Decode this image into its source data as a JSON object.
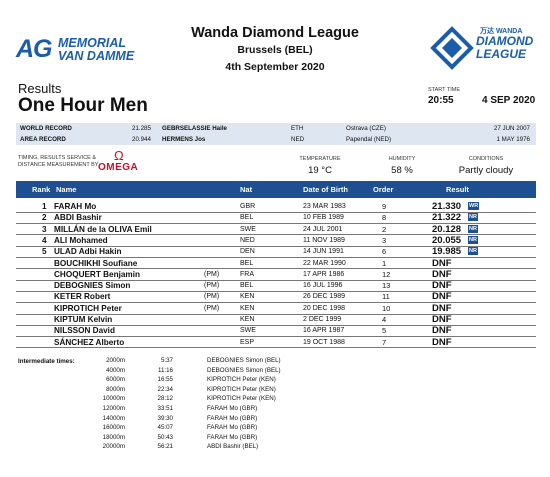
{
  "header": {
    "left_logo": {
      "mark": "AG",
      "line1": "MEMORIAL",
      "line2": "VAN DAMME"
    },
    "event_title": "Wanda Diamond League",
    "event_location": "Brussels (BEL)",
    "event_date": "4th September 2020",
    "right_logo": {
      "top": "万达 WANDA",
      "line1": "DIAMOND",
      "line2": "LEAGUE"
    }
  },
  "results_label": "Results",
  "event_name": "One Hour Men",
  "start": {
    "label": "START TIME",
    "time": "20:55",
    "date": "4 SEP 2020"
  },
  "records": [
    {
      "label": "WORLD RECORD",
      "mark": "21.285",
      "athlete": "GEBRSELASSIE Haile",
      "nat": "ETH",
      "venue": "Ostrava (CZE)",
      "date": "27 JUN 2007"
    },
    {
      "label": "AREA RECORD",
      "mark": "20.944",
      "athlete": "HERMENS Jos",
      "nat": "NED",
      "venue": "Papendal (NED)",
      "date": "1 MAY 1976"
    }
  ],
  "timing": {
    "line1": "TIMING, RESULTS SERVICE &",
    "line2": "DISTANCE MEASUREMENT BY",
    "brand": "OMEGA",
    "brand_symbol": "Ω"
  },
  "conditions": [
    {
      "label": "TEMPERATURE",
      "value": "19 °C"
    },
    {
      "label": "HUMIDITY",
      "value": "58 %"
    },
    {
      "label": "CONDITIONS",
      "value": "Partly cloudy"
    }
  ],
  "table": {
    "headers": {
      "rank": "Rank",
      "name": "Name",
      "nat": "Nat",
      "dob": "Date of Birth",
      "order": "Order",
      "result": "Result"
    },
    "rows": [
      {
        "rank": "1",
        "name": "FARAH Mo",
        "pm": "",
        "nat": "GBR",
        "dob": "23 MAR 1983",
        "order": "9",
        "result": "21.330",
        "tag": "WR"
      },
      {
        "rank": "2",
        "name": "ABDI Bashir",
        "pm": "",
        "nat": "BEL",
        "dob": "10 FEB 1989",
        "order": "8",
        "result": "21.322",
        "tag": "NR"
      },
      {
        "rank": "3",
        "name": "MILLÁN de la OLIVA Emil",
        "pm": "",
        "nat": "SWE",
        "dob": "24 JUL 2001",
        "order": "2",
        "result": "20.128",
        "tag": "NR"
      },
      {
        "rank": "4",
        "name": "ALI Mohamed",
        "pm": "",
        "nat": "NED",
        "dob": "11 NOV 1989",
        "order": "3",
        "result": "20.055",
        "tag": "NR"
      },
      {
        "rank": "5",
        "name": "ULAD Adbi Hakin",
        "pm": "",
        "nat": "DEN",
        "dob": "14 JUN 1991",
        "order": "6",
        "result": "19.985",
        "tag": "NR"
      },
      {
        "rank": "",
        "name": "BOUCHIKHI Soufiane",
        "pm": "",
        "nat": "BEL",
        "dob": "22 MAR 1990",
        "order": "1",
        "result": "DNF",
        "tag": ""
      },
      {
        "rank": "",
        "name": "CHOQUERT Benjamin",
        "pm": "(PM)",
        "nat": "FRA",
        "dob": "17 APR 1986",
        "order": "12",
        "result": "DNF",
        "tag": ""
      },
      {
        "rank": "",
        "name": "DEBOGNIES Simon",
        "pm": "(PM)",
        "nat": "BEL",
        "dob": "16 JUL 1996",
        "order": "13",
        "result": "DNF",
        "tag": ""
      },
      {
        "rank": "",
        "name": "KETER Robert",
        "pm": "(PM)",
        "nat": "KEN",
        "dob": "26 DEC 1989",
        "order": "11",
        "result": "DNF",
        "tag": ""
      },
      {
        "rank": "",
        "name": "KIPROTICH Peter",
        "pm": "(PM)",
        "nat": "KEN",
        "dob": "20 DEC 1998",
        "order": "10",
        "result": "DNF",
        "tag": ""
      },
      {
        "rank": "",
        "name": "KIPTUM Kelvin",
        "pm": "",
        "nat": "KEN",
        "dob": "2 DEC 1999",
        "order": "4",
        "result": "DNF",
        "tag": ""
      },
      {
        "rank": "",
        "name": "NILSSON David",
        "pm": "",
        "nat": "SWE",
        "dob": "16 APR 1987",
        "order": "5",
        "result": "DNF",
        "tag": ""
      },
      {
        "rank": "",
        "name": "SÁNCHEZ Alberto",
        "pm": "",
        "nat": "ESP",
        "dob": "19 OCT 1988",
        "order": "7",
        "result": "DNF",
        "tag": ""
      }
    ]
  },
  "intermediate": {
    "label": "Intermediate times:",
    "rows": [
      {
        "dist": "2000m",
        "time": "5:37",
        "leader": "DEBOGNIES Simon (BEL)"
      },
      {
        "dist": "4000m",
        "time": "11:16",
        "leader": "DEBOGNIES Simon (BEL)"
      },
      {
        "dist": "6000m",
        "time": "16:55",
        "leader": "KIPROTICH Peter (KEN)"
      },
      {
        "dist": "8000m",
        "time": "22:34",
        "leader": "KIPROTICH Peter (KEN)"
      },
      {
        "dist": "10000m",
        "time": "28:12",
        "leader": "KIPROTICH Peter (KEN)"
      },
      {
        "dist": "12000m",
        "time": "33:51",
        "leader": "FARAH Mo (GBR)"
      },
      {
        "dist": "14000m",
        "time": "39:30",
        "leader": "FARAH Mo (GBR)"
      },
      {
        "dist": "16000m",
        "time": "45:07",
        "leader": "FARAH Mo (GBR)"
      },
      {
        "dist": "18000m",
        "time": "50:43",
        "leader": "FARAH Mo (GBR)"
      },
      {
        "dist": "20000m",
        "time": "56:21",
        "leader": "ABDI Bashir (BEL)"
      }
    ]
  },
  "colors": {
    "brand_blue": "#1d4f91",
    "logo_blue": "#1b5da8",
    "omega_red": "#c8102e",
    "record_bg": "#dde6f1"
  }
}
